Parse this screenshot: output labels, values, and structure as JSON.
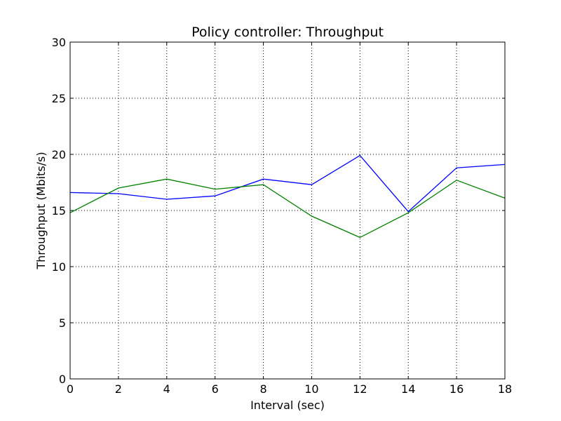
{
  "chart_data": {
    "type": "line",
    "title": "Policy controller: Throughput",
    "xlabel": "Interval (sec)",
    "ylabel": "Throughput (Mbits/s)",
    "xlim": [
      0,
      18
    ],
    "ylim": [
      0,
      30
    ],
    "xticks": [
      0,
      2,
      4,
      6,
      8,
      10,
      12,
      14,
      16,
      18
    ],
    "yticks": [
      0,
      5,
      10,
      15,
      20,
      25,
      30
    ],
    "grid": true,
    "x": [
      0,
      2,
      4,
      6,
      8,
      10,
      12,
      14,
      16,
      18
    ],
    "series": [
      {
        "color": "#0000ff",
        "values": [
          16.6,
          16.5,
          16.0,
          16.3,
          17.8,
          17.3,
          19.9,
          14.9,
          18.8,
          19.1
        ]
      },
      {
        "color": "#008000",
        "values": [
          14.8,
          17.0,
          17.8,
          16.9,
          17.3,
          14.5,
          12.6,
          14.8,
          17.7,
          16.1
        ]
      }
    ]
  }
}
